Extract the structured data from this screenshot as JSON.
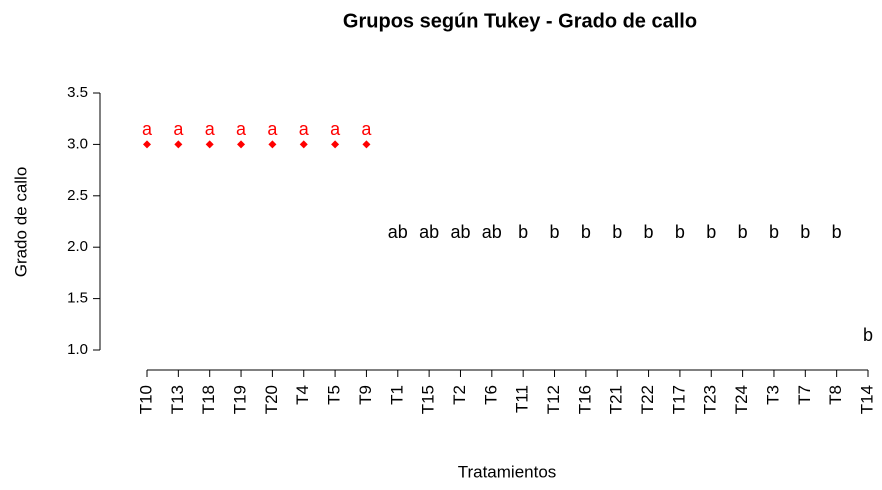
{
  "chart_data": {
    "type": "scatter",
    "title": "Grupos según Tukey - Grado de callo",
    "x_label": "Tratamientos",
    "y_label": "Grado de callo",
    "categories": [
      "T10",
      "T13",
      "T18",
      "T19",
      "T20",
      "T4",
      "T5",
      "T9",
      "T1",
      "T15",
      "T2",
      "T6",
      "T11",
      "T12",
      "T16",
      "T21",
      "T22",
      "T17",
      "T23",
      "T24",
      "T3",
      "T7",
      "T8",
      "T14"
    ],
    "values": [
      3,
      3,
      3,
      3,
      3,
      3,
      3,
      3,
      2,
      2,
      2,
      2,
      2,
      2,
      2,
      2,
      2,
      2,
      2,
      2,
      2,
      2,
      2,
      1
    ],
    "groups": [
      "a",
      "a",
      "a",
      "a",
      "a",
      "a",
      "a",
      "a",
      "ab",
      "ab",
      "ab",
      "ab",
      "b",
      "b",
      "b",
      "b",
      "b",
      "b",
      "b",
      "b",
      "b",
      "b",
      "b",
      "b"
    ],
    "colors": [
      "#ff0000",
      "#ff0000",
      "#ff0000",
      "#ff0000",
      "#ff0000",
      "#ff0000",
      "#ff0000",
      "#ff0000",
      "#ffffff",
      "#ffffff",
      "#ffffff",
      "#ffffff",
      "#ffffff",
      "#ffffff",
      "#ffffff",
      "#ffffff",
      "#ffffff",
      "#ffffff",
      "#ffffff",
      "#ffffff",
      "#ffffff",
      "#ffffff",
      "#ffffff",
      "#ffffff"
    ],
    "label_colors": [
      "#ff0000",
      "#ff0000",
      "#ff0000",
      "#ff0000",
      "#ff0000",
      "#ff0000",
      "#ff0000",
      "#ff0000",
      "#000000",
      "#000000",
      "#000000",
      "#000000",
      "#000000",
      "#000000",
      "#000000",
      "#000000",
      "#000000",
      "#000000",
      "#000000",
      "#000000",
      "#000000",
      "#000000",
      "#000000",
      "#000000"
    ],
    "ylim": [
      1,
      3.5
    ],
    "yticks": [
      {
        "value": 1,
        "label": "1.0"
      },
      {
        "value": 1.5,
        "label": "1.5"
      },
      {
        "value": 2,
        "label": "2.0"
      },
      {
        "value": 2.5,
        "label": "2.5"
      },
      {
        "value": 3,
        "label": "3.0"
      },
      {
        "value": 3.5,
        "label": "3.5"
      }
    ]
  }
}
